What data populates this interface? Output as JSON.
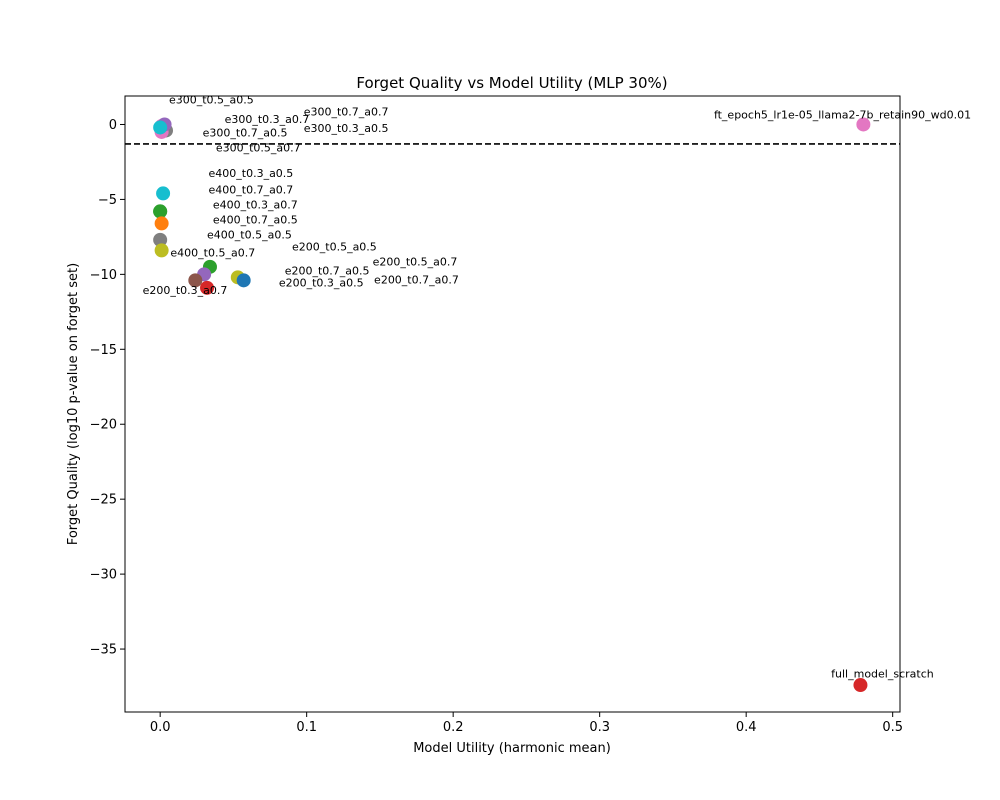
{
  "chart_data": {
    "type": "scatter",
    "title": "Forget Quality vs Model Utility (MLP 30%)",
    "xlabel": "Model Utility (harmonic mean)",
    "ylabel": "Forget Quality (log10 p-value on forget set)",
    "xlim": [
      -0.024,
      0.505
    ],
    "ylim": [
      -39.2,
      1.9
    ],
    "xticks": [
      0.0,
      0.1,
      0.2,
      0.3,
      0.4,
      0.5
    ],
    "xtick_labels": [
      "0.0",
      "0.1",
      "0.2",
      "0.3",
      "0.4",
      "0.5"
    ],
    "yticks": [
      0,
      -5,
      -10,
      -15,
      -20,
      -25,
      -30,
      -35
    ],
    "ytick_labels": [
      "0",
      "−5",
      "−10",
      "−15",
      "−20",
      "−25",
      "−30",
      "−35"
    ],
    "grid": false,
    "threshold_line": {
      "y": -1.3,
      "style": "dashed",
      "color": "#000000"
    },
    "points": [
      {
        "label": "e300_t0.5_a0.5",
        "x": 0.001,
        "y": -0.1,
        "color": "#e377c2",
        "label_at": [
          0.006,
          1.4
        ]
      },
      {
        "label": "e300_t0.3_a0.7",
        "x": 0.002,
        "y": -0.3,
        "color": "#ff7f0e",
        "label_at": [
          0.044,
          0.1
        ]
      },
      {
        "label": "e300_t0.7_a0.5",
        "x": 0.004,
        "y": -0.4,
        "color": "#7f7f7f",
        "label_at": [
          0.029,
          -0.8
        ]
      },
      {
        "label": "e300_t0.5_a0.7",
        "x": 0.001,
        "y": -0.5,
        "color": "#e377c2",
        "label_at": [
          0.038,
          -1.8
        ]
      },
      {
        "label": "e300_t0.7_a0.7",
        "x": 0.003,
        "y": 0.0,
        "color": "#9467bd",
        "label_at": [
          0.098,
          0.6
        ]
      },
      {
        "label": "e300_t0.3_a0.5",
        "x": 0.0,
        "y": -0.2,
        "color": "#17becf",
        "label_at": [
          0.098,
          -0.5
        ]
      },
      {
        "label": "ft_epoch5_lr1e-05_llama2-7b_retain90_wd0.01",
        "x": 0.48,
        "y": 0.0,
        "color": "#e377c2",
        "label_at": [
          0.378,
          0.4
        ]
      },
      {
        "label": "e400_t0.3_a0.5",
        "x": 0.002,
        "y": -4.6,
        "color": "#17becf",
        "label_at": [
          0.033,
          -3.5
        ]
      },
      {
        "label": "e400_t0.7_a0.7",
        "x": 0.0,
        "y": -5.8,
        "color": "#2ca02c",
        "label_at": [
          0.033,
          -4.6
        ]
      },
      {
        "label": "e400_t0.3_a0.7",
        "x": 0.0,
        "y": -5.8,
        "color": "#2ca02c",
        "label_at": [
          0.036,
          -5.6
        ]
      },
      {
        "label": "e400_t0.7_a0.5",
        "x": 0.001,
        "y": -6.6,
        "color": "#ff7f0e",
        "label_at": [
          0.036,
          -6.6
        ]
      },
      {
        "label": "e400_t0.5_a0.5",
        "x": 0.0,
        "y": -7.7,
        "color": "#7f7f7f",
        "label_at": [
          0.032,
          -7.6
        ]
      },
      {
        "label": "e400_t0.5_a0.7",
        "x": 0.001,
        "y": -8.4,
        "color": "#bcbd22",
        "label_at": [
          0.007,
          -8.8
        ]
      },
      {
        "label": "e200_t0.5_a0.5",
        "x": 0.034,
        "y": -9.5,
        "color": "#2ca02c",
        "label_at": [
          0.09,
          -8.4
        ]
      },
      {
        "label": "e200_t0.5_a0.7",
        "x": 0.03,
        "y": -10.0,
        "color": "#9467bd",
        "label_at": [
          0.145,
          -9.4
        ]
      },
      {
        "label": "e200_t0.7_a0.5",
        "x": 0.053,
        "y": -10.2,
        "color": "#bcbd22",
        "label_at": [
          0.085,
          -10.0
        ]
      },
      {
        "label": "e200_t0.7_a0.7",
        "x": 0.024,
        "y": -10.4,
        "color": "#8c564b",
        "label_at": [
          0.146,
          -10.6
        ]
      },
      {
        "label": "e200_t0.3_a0.5",
        "x": 0.057,
        "y": -10.4,
        "color": "#1f77b4",
        "label_at": [
          0.081,
          -10.8
        ]
      },
      {
        "label": "e200_t0.3_a0.7",
        "x": 0.032,
        "y": -10.9,
        "color": "#d62728",
        "label_at": [
          -0.012,
          -11.3
        ]
      },
      {
        "label": "full_model_scratch",
        "x": 0.478,
        "y": -37.4,
        "color": "#d62728",
        "label_at": [
          0.458,
          -36.9
        ]
      }
    ]
  }
}
